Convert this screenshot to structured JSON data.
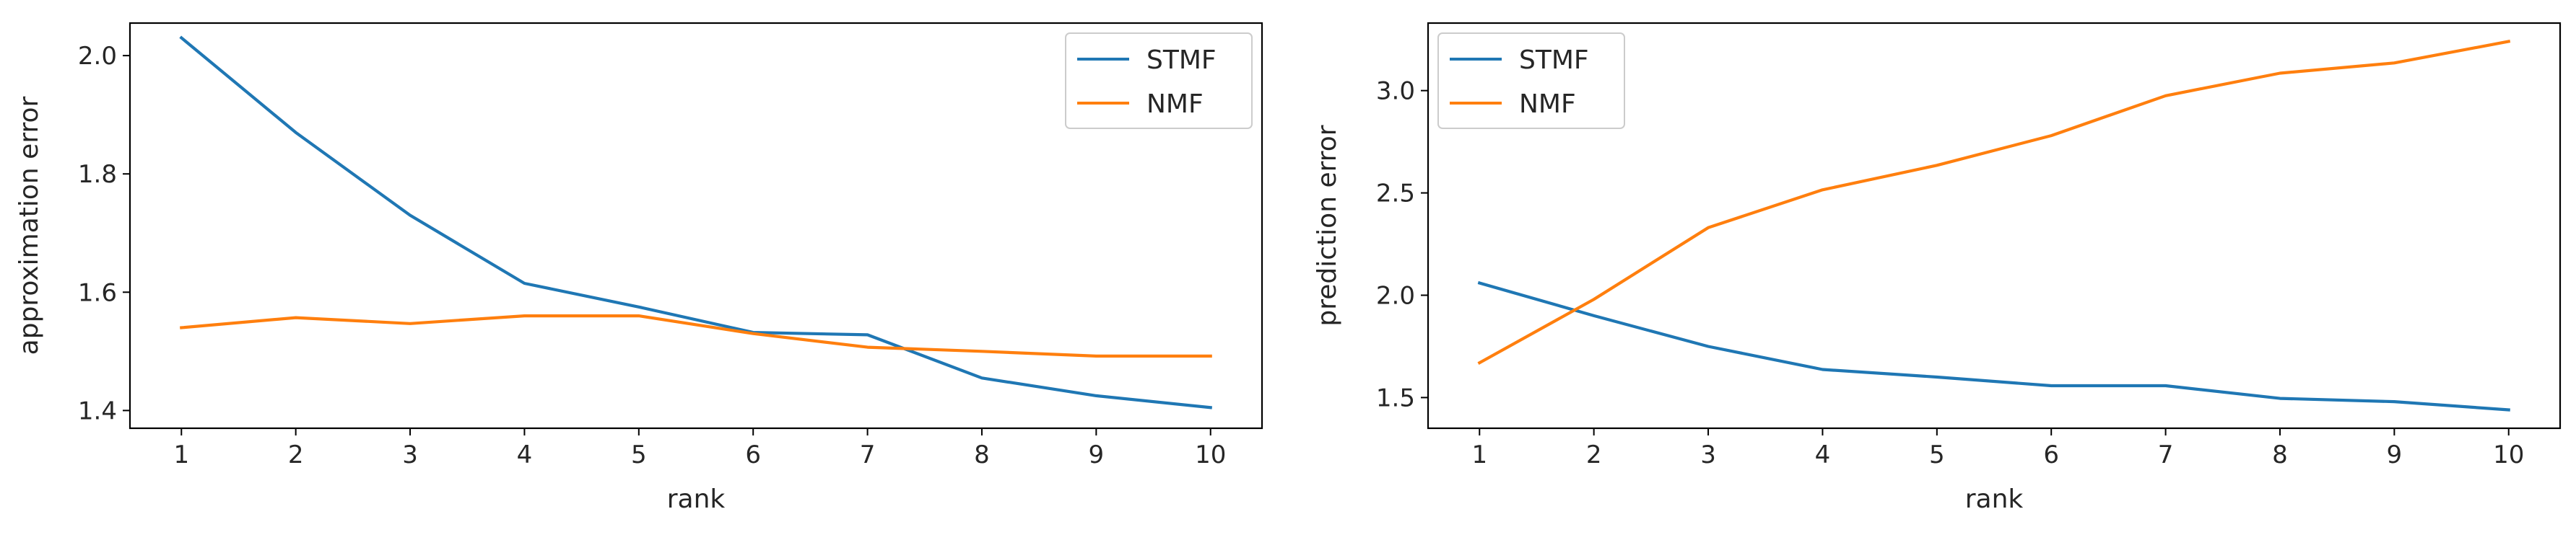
{
  "chart_data": [
    {
      "type": "line",
      "x": [
        1,
        2,
        3,
        4,
        5,
        6,
        7,
        8,
        9,
        10
      ],
      "xlabel": "rank",
      "ylabel": "approximation error",
      "xticks": [
        "1",
        "2",
        "3",
        "4",
        "5",
        "6",
        "7",
        "8",
        "9",
        "10"
      ],
      "yticks": [
        "1.4",
        "1.6",
        "1.8",
        "2.0"
      ],
      "xlim": [
        0.55,
        10.45
      ],
      "ylim": [
        1.37,
        2.055
      ],
      "grid": false,
      "legend_position": "top-right",
      "series": [
        {
          "name": "STMF",
          "color": "#1f77b4",
          "values": [
            2.03,
            1.87,
            1.73,
            1.615,
            1.575,
            1.532,
            1.528,
            1.455,
            1.425,
            1.405
          ]
        },
        {
          "name": "NMF",
          "color": "#ff7f0e",
          "values": [
            1.54,
            1.557,
            1.547,
            1.56,
            1.56,
            1.53,
            1.507,
            1.5,
            1.492,
            1.492
          ]
        }
      ]
    },
    {
      "type": "line",
      "x": [
        1,
        2,
        3,
        4,
        5,
        6,
        7,
        8,
        9,
        10
      ],
      "xlabel": "rank",
      "ylabel": "prediction error",
      "xticks": [
        "1",
        "2",
        "3",
        "4",
        "5",
        "6",
        "7",
        "8",
        "9",
        "10"
      ],
      "yticks": [
        "1.5",
        "2.0",
        "2.5",
        "3.0"
      ],
      "xlim": [
        0.55,
        10.45
      ],
      "ylim": [
        1.35,
        3.33
      ],
      "grid": false,
      "legend_position": "top-left",
      "series": [
        {
          "name": "STMF",
          "color": "#1f77b4",
          "values": [
            2.06,
            1.9,
            1.75,
            1.637,
            1.6,
            1.558,
            1.558,
            1.496,
            1.48,
            1.44
          ]
        },
        {
          "name": "NMF",
          "color": "#ff7f0e",
          "values": [
            1.67,
            1.98,
            2.33,
            2.515,
            2.635,
            2.78,
            2.975,
            3.085,
            3.135,
            3.24
          ]
        }
      ]
    }
  ]
}
